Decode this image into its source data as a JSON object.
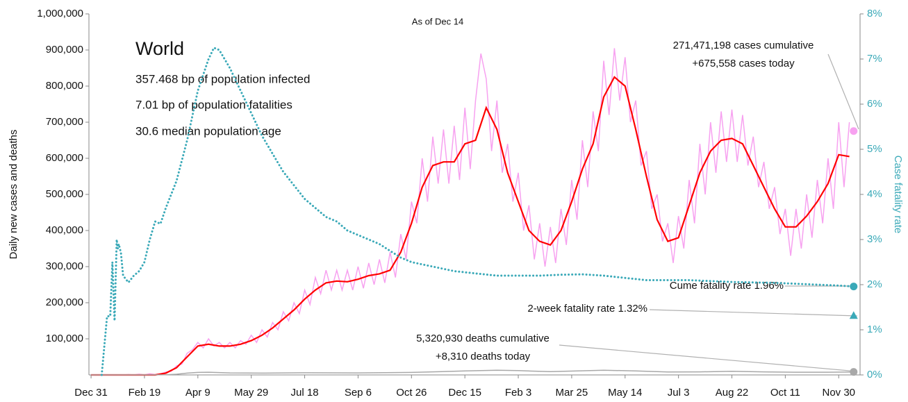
{
  "chart_data": {
    "type": "line",
    "title": "World",
    "subtitle": "As of Dec 14",
    "stats": [
      "357.468 bp of population infected",
      "7.01 bp of population fatalities",
      "30.6 median population age"
    ],
    "ylabel": "Daily new cases and deaths",
    "y2label": "Case fatality rate",
    "xlim": [
      -2,
      720
    ],
    "xticks": [
      {
        "value": 0,
        "label": "Dec 31"
      },
      {
        "value": 50,
        "label": "Feb 19"
      },
      {
        "value": 100,
        "label": "Apr 9"
      },
      {
        "value": 150,
        "label": "May 29"
      },
      {
        "value": 200,
        "label": "Jul 18"
      },
      {
        "value": 250,
        "label": "Sep 6"
      },
      {
        "value": 300,
        "label": "Oct 26"
      },
      {
        "value": 350,
        "label": "Dec 15"
      },
      {
        "value": 400,
        "label": "Feb 3"
      },
      {
        "value": 450,
        "label": "Mar 25"
      },
      {
        "value": 500,
        "label": "May 14"
      },
      {
        "value": 550,
        "label": "Jul 3"
      },
      {
        "value": 600,
        "label": "Aug 22"
      },
      {
        "value": 650,
        "label": "Oct 11"
      },
      {
        "value": 700,
        "label": "Nov 30"
      }
    ],
    "ylim": [
      0,
      1000000
    ],
    "yticks": [
      {
        "value": 100000,
        "label": "100,000"
      },
      {
        "value": 200000,
        "label": "200,000"
      },
      {
        "value": 300000,
        "label": "300,000"
      },
      {
        "value": 400000,
        "label": "400,000"
      },
      {
        "value": 500000,
        "label": "500,000"
      },
      {
        "value": 600000,
        "label": "600,000"
      },
      {
        "value": 700000,
        "label": "700,000"
      },
      {
        "value": 800000,
        "label": "800,000"
      },
      {
        "value": 900000,
        "label": "900,000"
      },
      {
        "value": 1000000,
        "label": "1,000,000"
      }
    ],
    "y2lim": [
      0,
      8
    ],
    "y2ticks": [
      {
        "value": 0,
        "label": "0%"
      },
      {
        "value": 1,
        "label": "1%"
      },
      {
        "value": 2,
        "label": "2%"
      },
      {
        "value": 3,
        "label": "3%"
      },
      {
        "value": 4,
        "label": "4%"
      },
      {
        "value": 5,
        "label": "5%"
      },
      {
        "value": 6,
        "label": "6%"
      },
      {
        "value": 7,
        "label": "7%"
      },
      {
        "value": 8,
        "label": "8%"
      }
    ],
    "series": [
      {
        "color": "#f7a1f0",
        "style": "solid",
        "axis": "y",
        "x": [
          0,
          5,
          10,
          15,
          20,
          25,
          30,
          35,
          40,
          45,
          50,
          55,
          60,
          65,
          70,
          75,
          80,
          85,
          90,
          95,
          100,
          105,
          110,
          115,
          120,
          125,
          130,
          135,
          140,
          145,
          150,
          155,
          160,
          165,
          170,
          175,
          180,
          185,
          190,
          195,
          200,
          205,
          210,
          215,
          220,
          225,
          230,
          235,
          240,
          245,
          250,
          255,
          260,
          265,
          270,
          275,
          280,
          285,
          290,
          295,
          300,
          305,
          310,
          315,
          320,
          325,
          330,
          335,
          340,
          345,
          350,
          355,
          360,
          365,
          370,
          375,
          380,
          385,
          390,
          395,
          400,
          405,
          410,
          415,
          420,
          425,
          430,
          435,
          440,
          445,
          450,
          455,
          460,
          465,
          470,
          475,
          480,
          485,
          490,
          495,
          500,
          505,
          510,
          515,
          520,
          525,
          530,
          535,
          540,
          545,
          550,
          555,
          560,
          565,
          570,
          575,
          580,
          585,
          590,
          595,
          600,
          605,
          610,
          615,
          620,
          625,
          630,
          635,
          640,
          645,
          650,
          655,
          660,
          665,
          670,
          675,
          680,
          685,
          690,
          695,
          700,
          705,
          710
        ],
        "values": [
          0,
          0,
          0,
          0,
          0,
          0,
          0,
          1000,
          0,
          2000,
          0,
          3000,
          1000,
          3000,
          8000,
          10000,
          25000,
          30000,
          60000,
          70000,
          90000,
          75000,
          100000,
          80000,
          90000,
          75000,
          90000,
          75000,
          95000,
          85000,
          110000,
          90000,
          125000,
          105000,
          145000,
          125000,
          175000,
          150000,
          200000,
          170000,
          235000,
          195000,
          270000,
          225000,
          290000,
          235000,
          290000,
          235000,
          290000,
          235000,
          300000,
          240000,
          310000,
          250000,
          320000,
          255000,
          340000,
          270000,
          390000,
          320000,
          480000,
          420000,
          600000,
          480000,
          660000,
          530000,
          680000,
          530000,
          690000,
          540000,
          740000,
          570000,
          760000,
          890000,
          820000,
          620000,
          760000,
          560000,
          640000,
          480000,
          560000,
          400000,
          470000,
          320000,
          420000,
          300000,
          410000,
          310000,
          460000,
          360000,
          540000,
          430000,
          650000,
          520000,
          730000,
          620000,
          870000,
          720000,
          905000,
          760000,
          880000,
          700000,
          760000,
          580000,
          620000,
          460000,
          500000,
          370000,
          420000,
          310000,
          440000,
          350000,
          540000,
          420000,
          640000,
          500000,
          700000,
          560000,
          730000,
          590000,
          735000,
          590000,
          720000,
          580000,
          660000,
          520000,
          590000,
          460000,
          520000,
          390000,
          460000,
          330000,
          460000,
          350000,
          500000,
          380000,
          540000,
          420000,
          600000,
          460000,
          700000,
          520000,
          700000
        ]
      },
      {
        "color": "#ff0000",
        "style": "solid",
        "axis": "y",
        "x": [
          0,
          10,
          20,
          30,
          40,
          50,
          60,
          70,
          80,
          90,
          100,
          110,
          120,
          130,
          140,
          150,
          160,
          170,
          180,
          190,
          200,
          210,
          220,
          230,
          240,
          250,
          260,
          270,
          280,
          290,
          300,
          310,
          320,
          330,
          340,
          350,
          360,
          370,
          380,
          390,
          400,
          410,
          420,
          430,
          440,
          450,
          460,
          470,
          480,
          490,
          500,
          510,
          520,
          530,
          540,
          550,
          560,
          570,
          580,
          590,
          600,
          610,
          620,
          630,
          640,
          650,
          660,
          670,
          680,
          690,
          700,
          710
        ],
        "values": [
          0,
          0,
          0,
          0,
          0,
          0,
          0,
          5000,
          20000,
          50000,
          80000,
          85000,
          80000,
          80000,
          85000,
          95000,
          110000,
          130000,
          155000,
          180000,
          210000,
          235000,
          255000,
          260000,
          258000,
          265000,
          275000,
          280000,
          290000,
          340000,
          420000,
          520000,
          580000,
          590000,
          590000,
          640000,
          650000,
          740000,
          680000,
          560000,
          480000,
          400000,
          370000,
          360000,
          400000,
          480000,
          570000,
          640000,
          770000,
          825000,
          800000,
          680000,
          550000,
          430000,
          370000,
          380000,
          470000,
          560000,
          620000,
          650000,
          655000,
          640000,
          580000,
          520000,
          460000,
          410000,
          410000,
          440000,
          480000,
          530000,
          610000,
          605000
        ]
      },
      {
        "color": "#a8a8a8",
        "style": "solid",
        "axis": "y",
        "x": [
          0,
          50,
          70,
          80,
          90,
          100,
          110,
          130,
          160,
          200,
          250,
          300,
          350,
          380,
          400,
          430,
          480,
          510,
          540,
          570,
          600,
          630,
          660,
          690,
          714
        ],
        "values": [
          0,
          100,
          500,
          2000,
          5000,
          7000,
          7500,
          5500,
          5000,
          6000,
          5500,
          7000,
          11000,
          13000,
          12000,
          9000,
          13000,
          11000,
          8000,
          8500,
          10000,
          8500,
          7500,
          7500,
          8310
        ]
      },
      {
        "color": "#3aa9b8",
        "style": "dotted",
        "axis": "y2",
        "x": [
          10,
          15,
          18,
          20,
          22,
          24,
          25,
          26,
          28,
          30,
          35,
          40,
          45,
          50,
          55,
          60,
          65,
          70,
          80,
          90,
          100,
          110,
          115,
          120,
          130,
          140,
          150,
          160,
          170,
          180,
          190,
          200,
          210,
          220,
          230,
          240,
          250,
          260,
          270,
          280,
          290,
          300,
          320,
          340,
          360,
          380,
          400,
          420,
          440,
          460,
          480,
          500,
          520,
          540,
          560,
          580,
          600,
          620,
          640,
          660,
          680,
          700,
          714
        ],
        "values": [
          0,
          1.3,
          1.3,
          2.5,
          1.2,
          3.0,
          2.8,
          2.9,
          2.7,
          2.2,
          2.05,
          2.2,
          2.3,
          2.5,
          3.0,
          3.4,
          3.35,
          3.7,
          4.3,
          5.2,
          6.3,
          7.0,
          7.25,
          7.2,
          6.8,
          6.3,
          5.8,
          5.3,
          4.9,
          4.5,
          4.2,
          3.9,
          3.7,
          3.5,
          3.4,
          3.2,
          3.1,
          3.0,
          2.9,
          2.75,
          2.6,
          2.5,
          2.4,
          2.3,
          2.25,
          2.2,
          2.2,
          2.2,
          2.22,
          2.23,
          2.2,
          2.15,
          2.1,
          2.1,
          2.1,
          2.08,
          2.06,
          2.05,
          2.04,
          2.02,
          2.0,
          1.98,
          1.96
        ]
      }
    ],
    "markers": [
      {
        "x": 714,
        "value": 675558,
        "axis": "y",
        "shape": "circle",
        "color": "#f7a1f0"
      },
      {
        "x": 714,
        "value": 1.96,
        "axis": "y2",
        "shape": "circle",
        "color": "#3aa9b8"
      },
      {
        "x": 714,
        "value": 1.32,
        "axis": "y2",
        "shape": "triangle",
        "color": "#3aa9b8"
      },
      {
        "x": 714,
        "value": 8310,
        "axis": "y",
        "shape": "circle",
        "color": "#a8a8a8"
      }
    ],
    "annotations": [
      {
        "lines": [
          "271,471,198 cases cumulative",
          "+675,558 cases today"
        ]
      },
      {
        "lines": [
          "Cume fatality rate 1.96%"
        ]
      },
      {
        "lines": [
          "2-week fatality rate 1.32%"
        ]
      },
      {
        "lines": [
          "5,320,930 deaths cumulative",
          "+8,310 deaths today"
        ]
      }
    ]
  }
}
